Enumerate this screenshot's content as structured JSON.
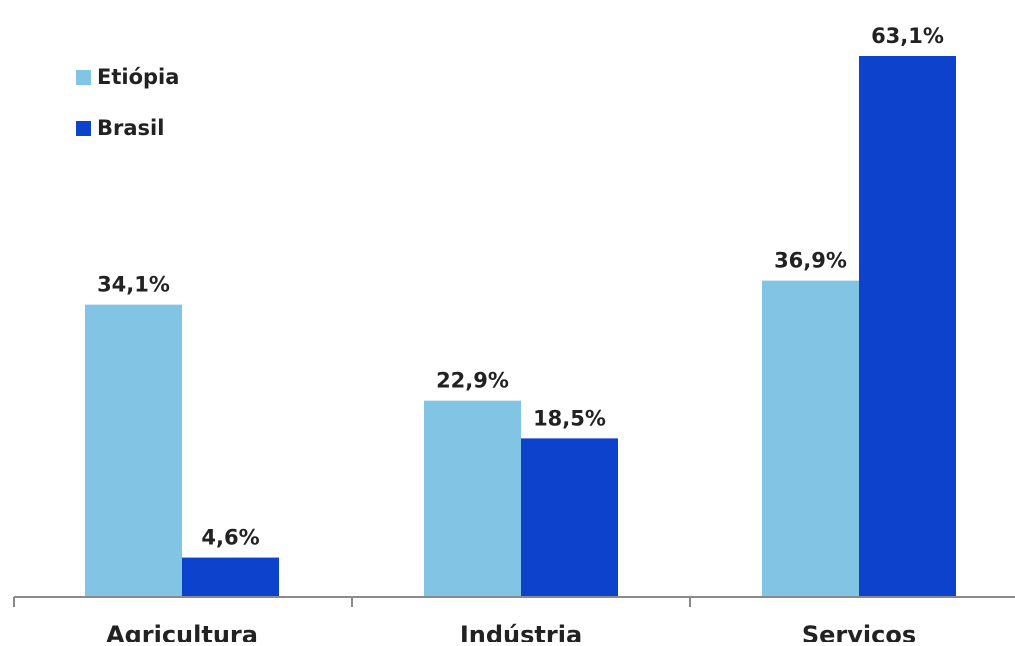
{
  "chart_data": {
    "type": "bar",
    "categories": [
      "Agricultura",
      "Indústria",
      "Serviços"
    ],
    "series": [
      {
        "name": "Etiópia",
        "values": [
          34.1,
          22.9,
          36.9
        ],
        "labels": [
          "34,1%",
          "22,9%",
          "36,9%"
        ],
        "color": "#82C4E4"
      },
      {
        "name": "Brasil",
        "values": [
          4.6,
          18.5,
          63.1
        ],
        "labels": [
          "4,6%",
          "18,5%",
          "63,1%"
        ],
        "color": "#0D42CC"
      }
    ],
    "ylim": [
      0,
      70
    ],
    "grid": false,
    "legend_position": "top-left"
  }
}
